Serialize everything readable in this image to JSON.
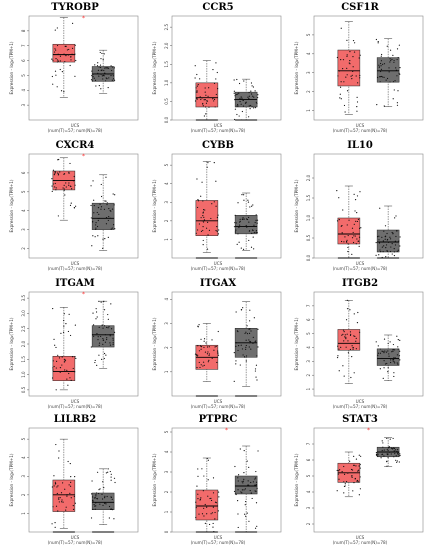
{
  "colors": {
    "tumor": "#f26b6b",
    "normal": "#6e6e6e",
    "star": "#ff3333",
    "border": "#333333"
  },
  "chart_data": [
    {
      "type": "box",
      "title": "TYROBP",
      "ylabel": "Expression - log₂(TPM+1)",
      "xlabel": "UCS",
      "footnote": "(num(T)=57; num(N)=78)",
      "ylim": [
        2,
        9
      ],
      "yticks": [
        3,
        4,
        5,
        6,
        7,
        8
      ],
      "significant": true,
      "boxes": [
        {
          "group": "T",
          "min": 3.5,
          "q1": 5.9,
          "median": 6.4,
          "q3": 7.1,
          "max": 8.9
        },
        {
          "group": "N",
          "min": 3.8,
          "q1": 4.6,
          "median": 5.1,
          "q3": 5.6,
          "max": 6.7
        }
      ]
    },
    {
      "type": "box",
      "title": "CCR5",
      "ylabel": "Expression - log₂(TPM+1)",
      "xlabel": "UCS",
      "footnote": "(num(T)=57; num(N)=78)",
      "ylim": [
        0,
        2.8
      ],
      "yticks": [
        0.0,
        0.5,
        1.0,
        1.5,
        2.0,
        2.5
      ],
      "significant": false,
      "boxes": [
        {
          "group": "T",
          "min": 0.0,
          "q1": 0.35,
          "median": 0.6,
          "q3": 1.0,
          "max": 1.6
        },
        {
          "group": "N",
          "min": 0.0,
          "q1": 0.35,
          "median": 0.55,
          "q3": 0.75,
          "max": 1.1
        }
      ]
    },
    {
      "type": "box",
      "title": "CSF1R",
      "ylabel": "Expression - log₂(TPM+1)",
      "xlabel": "UCS",
      "footnote": "(num(T)=57; num(N)=78)",
      "ylim": [
        0.5,
        6
      ],
      "yticks": [
        1,
        2,
        3,
        4,
        5
      ],
      "significant": false,
      "boxes": [
        {
          "group": "T",
          "min": 0.8,
          "q1": 2.3,
          "median": 3.1,
          "q3": 4.2,
          "max": 5.7
        },
        {
          "group": "N",
          "min": 1.2,
          "q1": 2.5,
          "median": 3.1,
          "q3": 3.8,
          "max": 4.8
        }
      ]
    },
    {
      "type": "box",
      "title": "CXCR4",
      "ylabel": "Expression - log₂(TPM+1)",
      "xlabel": "UCS",
      "footnote": "(num(T)=57; num(N)=78)",
      "ylim": [
        1.5,
        7
      ],
      "yticks": [
        2,
        3,
        4,
        5,
        6
      ],
      "significant": true,
      "boxes": [
        {
          "group": "T",
          "min": 3.5,
          "q1": 5.1,
          "median": 5.6,
          "q3": 6.1,
          "max": 6.8
        },
        {
          "group": "N",
          "min": 1.9,
          "q1": 3.0,
          "median": 3.6,
          "q3": 4.4,
          "max": 5.9
        }
      ]
    },
    {
      "type": "box",
      "title": "CYBB",
      "ylabel": "Expression - log₂(TPM+1)",
      "xlabel": "UCS",
      "footnote": "(num(T)=57; num(N)=78)",
      "ylim": [
        0,
        5.6
      ],
      "yticks": [
        1,
        2,
        3,
        4,
        5
      ],
      "significant": false,
      "boxes": [
        {
          "group": "T",
          "min": 0.3,
          "q1": 1.2,
          "median": 2.0,
          "q3": 3.1,
          "max": 5.2
        },
        {
          "group": "N",
          "min": 0.4,
          "q1": 1.3,
          "median": 1.7,
          "q3": 2.3,
          "max": 3.5
        }
      ]
    },
    {
      "type": "box",
      "title": "IL10",
      "ylabel": "Expression - log₂(TPM+1)",
      "xlabel": "UCS",
      "footnote": "(num(T)=57; num(N)=78)",
      "ylim": [
        0,
        2.6
      ],
      "yticks": [
        0.0,
        0.5,
        1.0,
        1.5,
        2.0
      ],
      "significant": false,
      "boxes": [
        {
          "group": "T",
          "min": 0.0,
          "q1": 0.35,
          "median": 0.6,
          "q3": 1.0,
          "max": 1.8
        },
        {
          "group": "N",
          "min": 0.0,
          "q1": 0.15,
          "median": 0.4,
          "q3": 0.7,
          "max": 1.3
        }
      ]
    },
    {
      "type": "box",
      "title": "ITGAM",
      "ylabel": "Expression - log₂(TPM+1)",
      "xlabel": "UCS",
      "footnote": "(num(T)=57; num(N)=78)",
      "ylim": [
        0.3,
        3.7
      ],
      "yticks": [
        0.5,
        1.0,
        1.5,
        2.0,
        2.5,
        3.0,
        3.5
      ],
      "significant": true,
      "boxes": [
        {
          "group": "T",
          "min": 0.5,
          "q1": 0.8,
          "median": 1.1,
          "q3": 1.6,
          "max": 3.2
        },
        {
          "group": "N",
          "min": 1.2,
          "q1": 1.9,
          "median": 2.3,
          "q3": 2.6,
          "max": 3.4
        }
      ]
    },
    {
      "type": "box",
      "title": "ITGAX",
      "ylabel": "Expression - log₂(TPM+1)",
      "xlabel": "UCS",
      "footnote": "(num(T)=57; num(N)=78)",
      "ylim": [
        0,
        4.3
      ],
      "yticks": [
        1,
        2,
        3,
        4
      ],
      "significant": false,
      "boxes": [
        {
          "group": "T",
          "min": 0.6,
          "q1": 1.1,
          "median": 1.6,
          "q3": 2.1,
          "max": 3.0
        },
        {
          "group": "N",
          "min": 0.4,
          "q1": 1.6,
          "median": 2.2,
          "q3": 2.8,
          "max": 3.9
        }
      ]
    },
    {
      "type": "box",
      "title": "ITGB2",
      "ylabel": "Expression - log₂(TPM+1)",
      "xlabel": "UCS",
      "footnote": "(num(T)=57; num(N)=78)",
      "ylim": [
        0.5,
        8
      ],
      "yticks": [
        1,
        2,
        3,
        4,
        5,
        6,
        7
      ],
      "significant": false,
      "boxes": [
        {
          "group": "T",
          "min": 1.4,
          "q1": 3.8,
          "median": 4.3,
          "q3": 5.3,
          "max": 7.4
        },
        {
          "group": "N",
          "min": 1.6,
          "q1": 2.7,
          "median": 3.2,
          "q3": 3.9,
          "max": 4.9
        }
      ]
    },
    {
      "type": "box",
      "title": "LILRB2",
      "ylabel": "Expression - log₂(TPM+1)",
      "xlabel": "UCS",
      "footnote": "(num(T)=57; num(N)=78)",
      "ylim": [
        0,
        5.6
      ],
      "yticks": [
        1,
        2,
        3,
        4,
        5
      ],
      "significant": false,
      "boxes": [
        {
          "group": "T",
          "min": 0.2,
          "q1": 1.1,
          "median": 2.0,
          "q3": 2.8,
          "max": 5.0
        },
        {
          "group": "N",
          "min": 0.4,
          "q1": 1.2,
          "median": 1.6,
          "q3": 2.1,
          "max": 3.4
        }
      ]
    },
    {
      "type": "box",
      "title": "PTPRC",
      "ylabel": "Expression - log₂(TPM+1)",
      "xlabel": "UCS",
      "footnote": "(num(T)=57; num(N)=78)",
      "ylim": [
        0,
        5.2
      ],
      "yticks": [
        0,
        1,
        2,
        3,
        4,
        5
      ],
      "significant": true,
      "boxes": [
        {
          "group": "T",
          "min": 0.0,
          "q1": 0.6,
          "median": 1.3,
          "q3": 2.1,
          "max": 3.7
        },
        {
          "group": "N",
          "min": 0.0,
          "q1": 1.9,
          "median": 2.3,
          "q3": 2.8,
          "max": 4.3
        }
      ]
    },
    {
      "type": "box",
      "title": "STAT3",
      "ylabel": "Expression - log₂(TPM+1)",
      "xlabel": "UCS",
      "footnote": "(num(T)=57; num(N)=78)",
      "ylim": [
        1.5,
        8
      ],
      "yticks": [
        2,
        3,
        4,
        5,
        6,
        7
      ],
      "significant": true,
      "boxes": [
        {
          "group": "T",
          "min": 3.7,
          "q1": 4.6,
          "median": 5.2,
          "q3": 5.8,
          "max": 6.5
        },
        {
          "group": "N",
          "min": 5.6,
          "q1": 6.2,
          "median": 6.5,
          "q3": 6.8,
          "max": 7.4
        }
      ]
    }
  ]
}
